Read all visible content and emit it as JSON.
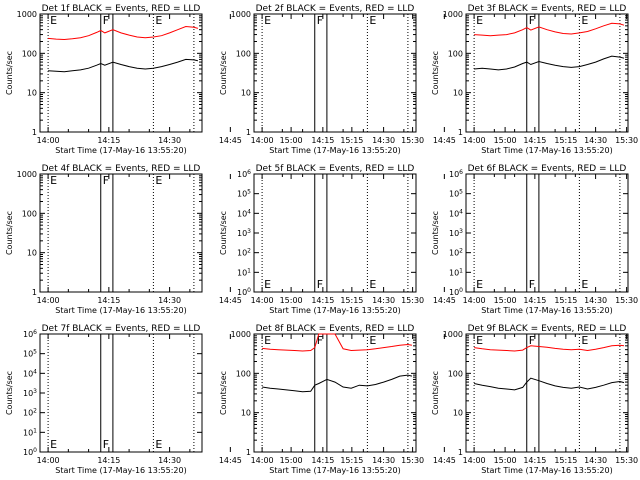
{
  "colors": {
    "events": "#000000",
    "lld": "#ff0000",
    "axis": "#000000",
    "background": "#ffffff"
  },
  "common": {
    "xlabel": "Start Time (17-May-16 13:55:20)",
    "ylabel": "Counts/sec",
    "x_ticks": [
      "14:00",
      "14:15",
      "14:30",
      "14:45",
      "15:00",
      "15:15",
      "15:30"
    ],
    "x_range_minutes": [
      -2,
      38
    ],
    "flag_lines": [
      {
        "t": 13,
        "style": "solid",
        "label": "F"
      },
      {
        "t": 16,
        "style": "solid",
        "label": ""
      },
      {
        "t": 0,
        "style": "dotted",
        "label": "E"
      },
      {
        "t": 26,
        "style": "dotted",
        "label": "E"
      },
      {
        "t": 36,
        "style": "dotted",
        "label": ""
      }
    ]
  },
  "chart_data": [
    {
      "type": "line",
      "title": "Det 1f BLACK = Events, RED = LLD",
      "ylim": [
        1,
        1000
      ],
      "yscale": "log",
      "y_ticks": [
        "1",
        "10",
        "100",
        "1000"
      ],
      "series": [
        {
          "name": "Events",
          "x": [
            0,
            2,
            4,
            6,
            8,
            10,
            12,
            13,
            14,
            16,
            18,
            20,
            22,
            24,
            26,
            28,
            30,
            32,
            34,
            36,
            37
          ],
          "y": [
            36,
            35,
            34,
            36,
            38,
            42,
            50,
            55,
            50,
            60,
            52,
            46,
            42,
            40,
            42,
            46,
            52,
            60,
            70,
            68,
            65
          ]
        },
        {
          "name": "LLD",
          "x": [
            0,
            2,
            4,
            6,
            8,
            10,
            12,
            13,
            14,
            16,
            18,
            20,
            22,
            24,
            26,
            28,
            30,
            32,
            34,
            36,
            37
          ],
          "y": [
            240,
            230,
            225,
            235,
            250,
            280,
            340,
            380,
            330,
            400,
            330,
            290,
            260,
            250,
            260,
            280,
            330,
            400,
            480,
            460,
            430
          ]
        }
      ]
    },
    {
      "type": "line",
      "title": "Det 2f BLACK = Events, RED = LLD",
      "ylim": [
        1,
        1000
      ],
      "yscale": "log",
      "y_ticks": [
        "1",
        "10",
        "100",
        "1000"
      ],
      "series": []
    },
    {
      "type": "line",
      "title": "Det 3f BLACK = Events, RED = LLD",
      "ylim": [
        1,
        1000
      ],
      "yscale": "log",
      "y_ticks": [
        "1",
        "10",
        "100",
        "1000"
      ],
      "series": [
        {
          "name": "Events",
          "x": [
            0,
            2,
            4,
            6,
            8,
            10,
            12,
            13,
            14,
            16,
            18,
            20,
            22,
            24,
            26,
            28,
            30,
            32,
            34,
            36,
            37
          ],
          "y": [
            40,
            42,
            40,
            38,
            40,
            45,
            55,
            60,
            52,
            62,
            55,
            50,
            46,
            44,
            46,
            52,
            60,
            72,
            85,
            80,
            75
          ]
        },
        {
          "name": "LLD",
          "x": [
            0,
            2,
            4,
            6,
            8,
            10,
            12,
            13,
            14,
            16,
            18,
            20,
            22,
            24,
            26,
            28,
            30,
            32,
            34,
            36,
            37
          ],
          "y": [
            300,
            290,
            280,
            290,
            300,
            330,
            400,
            450,
            390,
            470,
            400,
            350,
            320,
            310,
            330,
            360,
            420,
            500,
            580,
            560,
            520
          ]
        }
      ]
    },
    {
      "type": "line",
      "title": "Det 4f BLACK = Events, RED = LLD",
      "ylim": [
        1,
        1000
      ],
      "yscale": "log",
      "y_ticks": [
        "1",
        "10",
        "100",
        "1000"
      ],
      "series": []
    },
    {
      "type": "line",
      "title": "Det 5f BLACK = Events, RED = LLD",
      "ylim": [
        1,
        1000000
      ],
      "yscale": "log",
      "y_ticks": [
        "10^0",
        "10^1",
        "10^2",
        "10^3",
        "10^4",
        "10^5",
        "10^6"
      ],
      "series": []
    },
    {
      "type": "line",
      "title": "Det 6f BLACK = Events, RED = LLD",
      "ylim": [
        1,
        1000000
      ],
      "yscale": "log",
      "y_ticks": [
        "10^0",
        "10^1",
        "10^2",
        "10^3",
        "10^4",
        "10^5",
        "10^6"
      ],
      "series": []
    },
    {
      "type": "line",
      "title": "Det 7f BLACK = Events, RED = LLD",
      "ylim": [
        1,
        1000000
      ],
      "yscale": "log",
      "y_ticks": [
        "10^0",
        "10^1",
        "10^2",
        "10^3",
        "10^4",
        "10^5",
        "10^6"
      ],
      "series": []
    },
    {
      "type": "line",
      "title": "Det 8f BLACK = Events, RED = LLD",
      "ylim": [
        1,
        1000
      ],
      "yscale": "log",
      "y_ticks": [
        "1",
        "10",
        "100",
        "1000"
      ],
      "series": [
        {
          "name": "Events",
          "x": [
            0,
            2,
            4,
            6,
            8,
            10,
            12,
            13,
            14,
            16,
            18,
            20,
            22,
            24,
            26,
            28,
            30,
            32,
            34,
            36,
            37
          ],
          "y": [
            45,
            42,
            40,
            38,
            36,
            34,
            35,
            50,
            55,
            70,
            60,
            45,
            42,
            50,
            48,
            52,
            60,
            70,
            85,
            90,
            85
          ]
        },
        {
          "name": "LLD",
          "x": [
            0,
            2,
            4,
            6,
            8,
            10,
            12,
            13,
            14,
            16,
            18,
            20,
            22,
            24,
            26,
            28,
            30,
            32,
            34,
            36,
            37
          ],
          "y": [
            430,
            410,
            400,
            390,
            380,
            370,
            380,
            450,
            1000,
            1000,
            1000,
            420,
            380,
            390,
            400,
            420,
            450,
            480,
            520,
            540,
            520
          ]
        }
      ]
    },
    {
      "type": "line",
      "title": "Det 9f BLACK = Events, RED = LLD",
      "ylim": [
        1,
        1000
      ],
      "yscale": "log",
      "y_ticks": [
        "1",
        "10",
        "100",
        "1000"
      ],
      "series": [
        {
          "name": "Events",
          "x": [
            0,
            2,
            4,
            6,
            8,
            10,
            12,
            13,
            14,
            16,
            18,
            20,
            22,
            24,
            26,
            28,
            30,
            32,
            34,
            36,
            37
          ],
          "y": [
            55,
            50,
            46,
            42,
            40,
            38,
            44,
            60,
            75,
            65,
            55,
            48,
            44,
            42,
            45,
            40,
            44,
            50,
            58,
            62,
            58
          ]
        },
        {
          "name": "LLD",
          "x": [
            0,
            2,
            4,
            6,
            8,
            10,
            12,
            13,
            14,
            16,
            18,
            20,
            22,
            24,
            26,
            28,
            30,
            32,
            34,
            36,
            37
          ],
          "y": [
            450,
            420,
            400,
            390,
            380,
            370,
            390,
            450,
            500,
            480,
            460,
            430,
            410,
            400,
            410,
            380,
            410,
            450,
            500,
            520,
            500
          ]
        }
      ]
    }
  ]
}
